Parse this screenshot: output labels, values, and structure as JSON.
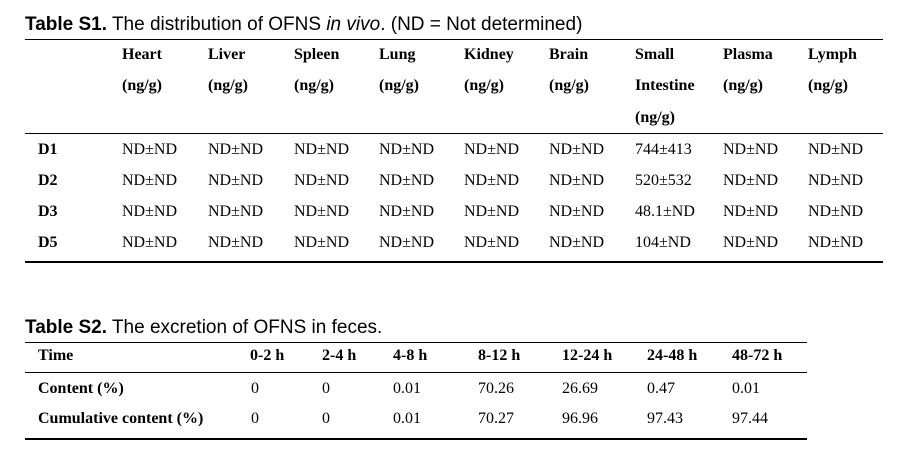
{
  "table1": {
    "caption_label": "Table S1.",
    "caption_pre": " The distribution of OFNS ",
    "caption_italic": "in vivo",
    "caption_post": ". (ND = Not determined)",
    "columns": [
      {
        "name": "Heart",
        "unit": "(ng/g)"
      },
      {
        "name": "Liver",
        "unit": "(ng/g)"
      },
      {
        "name": "Spleen",
        "unit": "(ng/g)"
      },
      {
        "name": "Lung",
        "unit": "(ng/g)"
      },
      {
        "name": "Kidney",
        "unit": "(ng/g)"
      },
      {
        "name": "Brain",
        "unit": "(ng/g)"
      },
      {
        "name": "Small",
        "name2": "Intestine",
        "unit": "(ng/g)"
      },
      {
        "name": "Plasma",
        "unit": "(ng/g)"
      },
      {
        "name": "Lymph",
        "unit": "(ng/g)"
      }
    ],
    "rows": [
      {
        "label": "D1",
        "values": [
          "ND±ND",
          "ND±ND",
          "ND±ND",
          "ND±ND",
          "ND±ND",
          "ND±ND",
          "744±413",
          "ND±ND",
          "ND±ND"
        ]
      },
      {
        "label": "D2",
        "values": [
          "ND±ND",
          "ND±ND",
          "ND±ND",
          "ND±ND",
          "ND±ND",
          "ND±ND",
          "520±532",
          "ND±ND",
          "ND±ND"
        ]
      },
      {
        "label": "D3",
        "values": [
          "ND±ND",
          "ND±ND",
          "ND±ND",
          "ND±ND",
          "ND±ND",
          "ND±ND",
          "48.1±ND",
          "ND±ND",
          "ND±ND"
        ]
      },
      {
        "label": "D5",
        "values": [
          "ND±ND",
          "ND±ND",
          "ND±ND",
          "ND±ND",
          "ND±ND",
          "ND±ND",
          "104±ND",
          "ND±ND",
          "ND±ND"
        ]
      }
    ]
  },
  "table2": {
    "caption_label": "Table S2.",
    "caption_text": " The excretion of OFNS in feces.",
    "header": [
      "Time",
      "0-2 h",
      "2-4 h",
      "4-8 h",
      "8-12 h",
      "12-24 h",
      "24-48 h",
      "48-72 h"
    ],
    "rows": [
      {
        "label": "Content (%)",
        "values": [
          "0",
          "0",
          "0.01",
          "70.26",
          "26.69",
          "0.47",
          "0.01"
        ]
      },
      {
        "label": "Cumulative content (%)",
        "values": [
          "0",
          "0",
          "0.01",
          "70.27",
          "96.96",
          "97.43",
          "97.44"
        ]
      }
    ]
  }
}
